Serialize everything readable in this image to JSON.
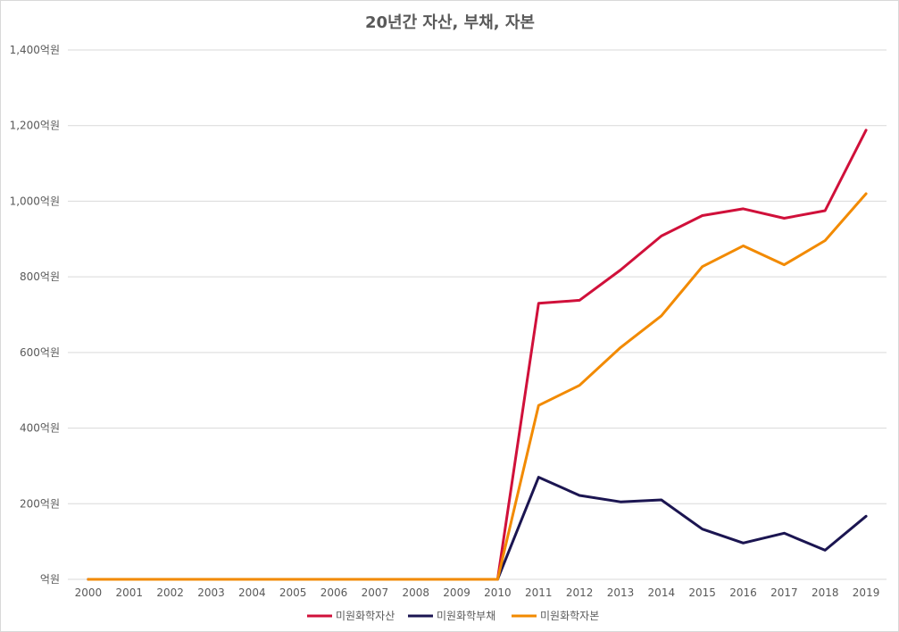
{
  "chart_data": {
    "type": "line",
    "title": "20년간 자산, 부채, 자본",
    "xlabel": "",
    "ylabel": "",
    "ylim": [
      0,
      1400
    ],
    "y_step": 200,
    "y_unit_suffix": "억원",
    "y_tick_labels": [
      "억원",
      "200억원",
      "400억원",
      "600억원",
      "800억원",
      "1,000억원",
      "1,200억원",
      "1,400억원"
    ],
    "categories": [
      "2000",
      "2001",
      "2002",
      "2003",
      "2004",
      "2005",
      "2006",
      "2007",
      "2008",
      "2009",
      "2010",
      "2011",
      "2012",
      "2013",
      "2014",
      "2015",
      "2016",
      "2017",
      "2018",
      "2019"
    ],
    "grid": true,
    "legend_position": "bottom",
    "series": [
      {
        "name": "미원화학자산",
        "color": "#d0103a",
        "values": [
          0,
          0,
          0,
          0,
          0,
          0,
          0,
          0,
          0,
          0,
          0,
          730,
          738,
          818,
          908,
          962,
          980,
          955,
          975,
          1188
        ]
      },
      {
        "name": "미원화학부채",
        "color": "#1b1551",
        "values": [
          0,
          0,
          0,
          0,
          0,
          0,
          0,
          0,
          0,
          0,
          0,
          270,
          222,
          205,
          210,
          133,
          96,
          122,
          77,
          167
        ]
      },
      {
        "name": "미원화학자본",
        "color": "#f28a00",
        "values": [
          0,
          0,
          0,
          0,
          0,
          0,
          0,
          0,
          0,
          0,
          0,
          460,
          513,
          613,
          697,
          827,
          882,
          832,
          896,
          1020
        ]
      }
    ]
  }
}
